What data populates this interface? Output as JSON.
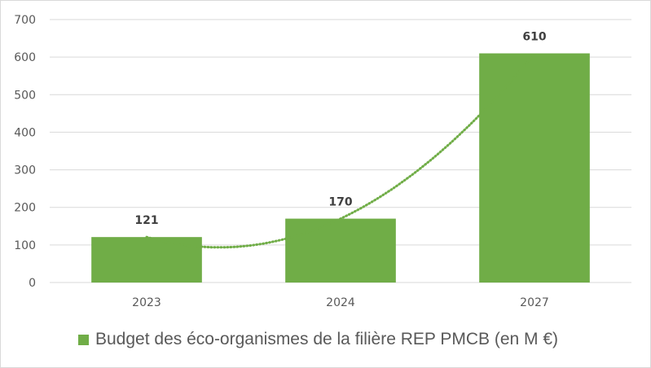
{
  "chart_data": {
    "type": "bar",
    "title": "",
    "xlabel": "",
    "ylabel": "",
    "categories": [
      "2023",
      "2024",
      "2027"
    ],
    "series": [
      {
        "name": "Budget des éco-organismes de la filière REP PMCB (en M €)",
        "values": [
          121,
          170,
          610
        ],
        "data_labels": [
          "121",
          "170",
          "610"
        ],
        "color": "#70ad47"
      }
    ],
    "trendline": {
      "type": "polynomial",
      "style": "dotted",
      "color": "#70ad47"
    },
    "ylim": [
      0,
      700
    ],
    "yticks": [
      "0",
      "100",
      "200",
      "300",
      "400",
      "500",
      "600",
      "700"
    ],
    "grid": true,
    "legend": "bottom"
  }
}
